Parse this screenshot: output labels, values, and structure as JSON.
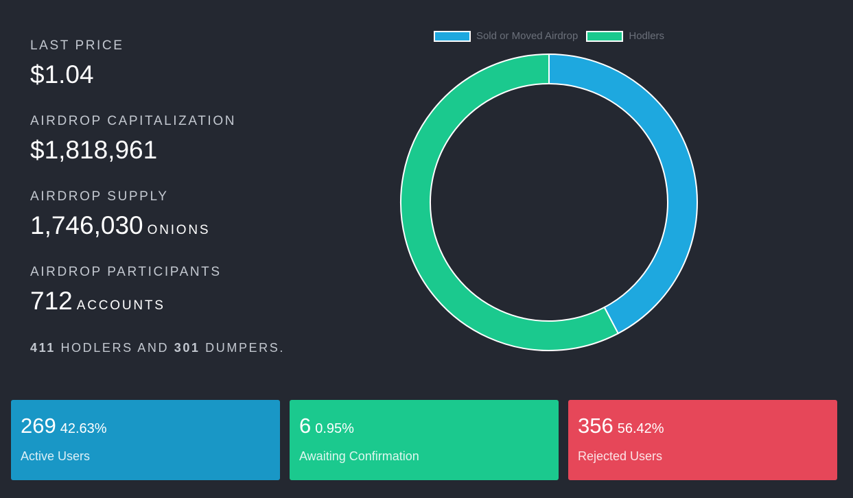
{
  "stats": {
    "last_price_label": "LAST PRICE",
    "last_price_value": "$1.04",
    "capitalization_label": "AIRDROP CAPITALIZATION",
    "capitalization_value": "$1,818,961",
    "supply_label": "AIRDROP SUPPLY",
    "supply_value": "1,746,030",
    "supply_unit": "ONIONS",
    "participants_label": "AIRDROP PARTICIPANTS",
    "participants_value": "712",
    "participants_unit": "ACCOUNTS"
  },
  "summary": {
    "hodlers_count": "411",
    "hodlers_text": "HODLERS AND",
    "dumpers_count": "301",
    "dumpers_text": "DUMPERS."
  },
  "chart_data": {
    "type": "pie",
    "variant": "doughnut",
    "categories": [
      "Sold or Moved Airdrop",
      "Hodlers"
    ],
    "values": [
      301,
      411
    ],
    "colors": [
      "#1ea8df",
      "#1bc98e"
    ],
    "legend": "top",
    "title": ""
  },
  "cards": [
    {
      "count": "269",
      "percent": "42.63%",
      "label": "Active Users",
      "color": "#1997c6"
    },
    {
      "count": "6",
      "percent": "0.95%",
      "label": "Awaiting Confirmation",
      "color": "#1bc98e"
    },
    {
      "count": "356",
      "percent": "56.42%",
      "label": "Rejected Users",
      "color": "#e64759"
    }
  ]
}
